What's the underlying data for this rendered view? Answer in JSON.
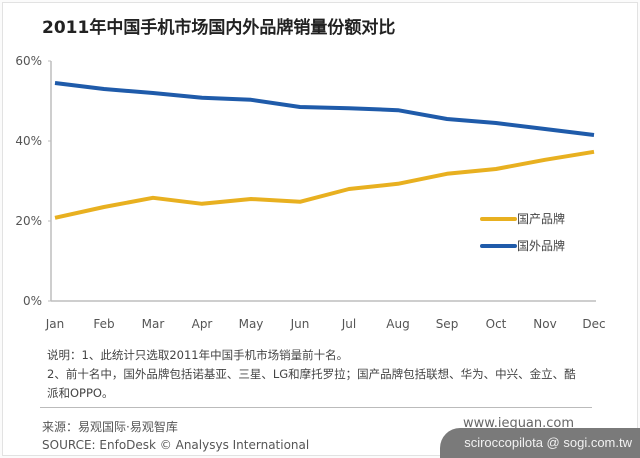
{
  "title": "2011年中国手机市场国内外品牌销量份额对比",
  "chart_data": {
    "type": "line",
    "title": "2011年中国手机市场国内外品牌销量份额对比",
    "xlabel": "",
    "ylabel": "",
    "categories": [
      "Jan",
      "Feb",
      "Mar",
      "Apr",
      "May",
      "Jun",
      "Jul",
      "Aug",
      "Sep",
      "Oct",
      "Nov",
      "Dec"
    ],
    "y_ticks": [
      "0%",
      "20%",
      "40%",
      "60%"
    ],
    "ylim": [
      0,
      60
    ],
    "grid": false,
    "legend_position": "right-inside",
    "series": [
      {
        "name": "国产品牌",
        "color": "#E8B020",
        "values": [
          20.8,
          23.5,
          25.8,
          24.3,
          25.5,
          24.8,
          28.0,
          29.3,
          31.8,
          33.0,
          35.3,
          37.3
        ]
      },
      {
        "name": "国外品牌",
        "color": "#1F5BAA",
        "values": [
          54.5,
          53.0,
          52.0,
          50.8,
          50.3,
          48.5,
          48.2,
          47.7,
          45.5,
          44.5,
          43.0,
          41.5
        ]
      }
    ]
  },
  "notes": {
    "line1": "说明：1、此统计只选取2011年中国手机市场销量前十名。",
    "line2": "2、前十名中，国外品牌包括诺基亚、三星、LG和摩托罗拉；国产品牌包括联想、华为、中兴、金立、酷派和OPPO。"
  },
  "source": {
    "cn": "来源：易观国际·易观智库",
    "en": "SOURCE: EnfoDesk © Analysys International"
  },
  "site": "www.ieguan.com",
  "watermark": "sciroccopilota @ sogi.com.tw"
}
